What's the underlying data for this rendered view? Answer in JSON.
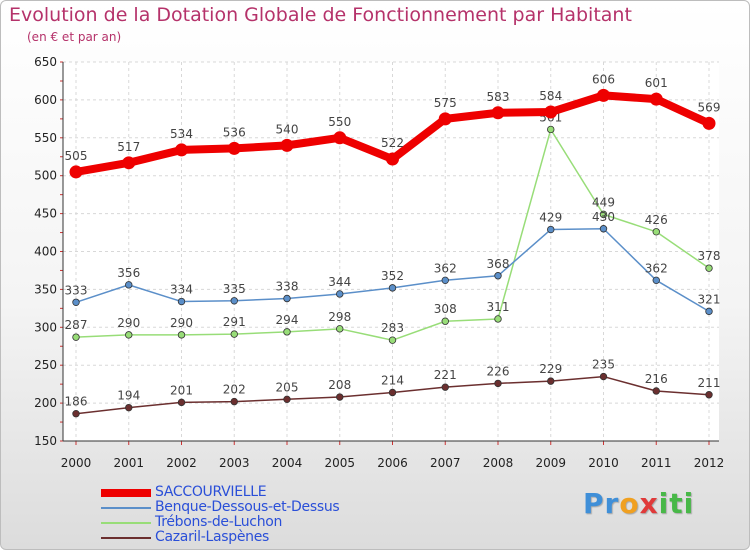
{
  "title": "Evolution de la Dotation Globale de Fonctionnement par Habitant",
  "subtitle": "(en € et par an)",
  "logo": {
    "letters": [
      "P",
      "r",
      "o",
      "x",
      "i",
      "t",
      "i"
    ],
    "colors": [
      "#3f8fd8",
      "#3f8fd8",
      "#f0a020",
      "#e03a3a",
      "#48b848",
      "#48b848",
      "#48b848"
    ]
  },
  "chart_data": {
    "type": "line",
    "x": [
      "2000",
      "2001",
      "2002",
      "2003",
      "2004",
      "2005",
      "2006",
      "2007",
      "2008",
      "2009",
      "2010",
      "2011",
      "2012"
    ],
    "ylim": [
      150,
      650
    ],
    "yticks": [
      150,
      200,
      250,
      300,
      350,
      400,
      450,
      500,
      550,
      600,
      650
    ],
    "grid": true,
    "legend_position": "bottom-left",
    "series": [
      {
        "name": "SACCOURVIELLE",
        "color": "#ee0000",
        "values": [
          505,
          517,
          534,
          536,
          540,
          550,
          522,
          575,
          583,
          584,
          606,
          601,
          569
        ],
        "labels": [
          "505",
          "517",
          "534",
          "536",
          "540",
          "550",
          "522",
          "575",
          "583",
          "584",
          "606",
          "601",
          "569"
        ]
      },
      {
        "name": "Benque-Dessous-et-Dessus",
        "color": "#5b8fc9",
        "values": [
          333,
          356,
          334,
          335,
          338,
          344,
          352,
          362,
          368,
          429,
          430,
          362,
          321
        ],
        "labels": [
          "333",
          "356",
          "334",
          "335",
          "338",
          "344",
          "352",
          "362",
          "368",
          "429",
          "430",
          "362",
          "321"
        ]
      },
      {
        "name": "Trébons-de-Luchon",
        "color": "#98dd78",
        "values": [
          287,
          290,
          290,
          291,
          294,
          298,
          283,
          308,
          311,
          561,
          449,
          426,
          378
        ],
        "labels": [
          "287",
          "290",
          "290",
          "291",
          "294",
          "298",
          "283",
          "308",
          "311",
          "561",
          "449",
          "426",
          "378"
        ]
      },
      {
        "name": "Cazaril-Laspènes",
        "color": "#6b2f2f",
        "values": [
          186,
          194,
          201,
          202,
          205,
          208,
          214,
          221,
          226,
          229,
          235,
          216,
          211
        ],
        "labels": [
          "186",
          "194",
          "201",
          "202",
          "205",
          "208",
          "214",
          "221",
          "226",
          "229",
          "235",
          "216",
          "211"
        ]
      }
    ]
  }
}
